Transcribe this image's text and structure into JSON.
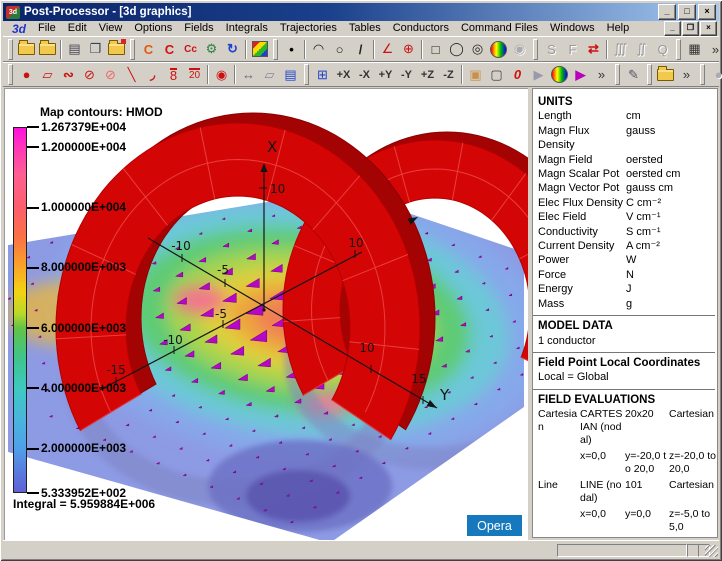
{
  "window": {
    "title": "Post-Processor - [3d graphics]",
    "app_icon": "3d",
    "controls": {
      "minimize": "_",
      "maximize": "□",
      "close": "×"
    },
    "mdi_controls": {
      "minimize": "_",
      "restore": "❐",
      "close": "×"
    }
  },
  "menu": {
    "items": [
      {
        "label": "3d",
        "accent": true
      },
      {
        "label": "File"
      },
      {
        "label": "Edit"
      },
      {
        "label": "View"
      },
      {
        "label": "Options"
      },
      {
        "label": "Fields"
      },
      {
        "label": "Integrals"
      },
      {
        "label": "Trajectories"
      },
      {
        "label": "Tables"
      },
      {
        "label": "Conductors"
      },
      {
        "label": "Command Files"
      },
      {
        "label": "Windows"
      },
      {
        "label": "Help"
      }
    ]
  },
  "toolbar1": {
    "items": [
      {
        "t": "g"
      },
      {
        "t": "b",
        "n": "open-results-file",
        "cls": "ic-folder"
      },
      {
        "t": "b",
        "n": "open-file",
        "cls": "ic-folder"
      },
      {
        "t": "s"
      },
      {
        "t": "b",
        "n": "print",
        "gl": "▤",
        "c": "#445"
      },
      {
        "t": "b",
        "n": "copy",
        "gl": "❐",
        "c": "#345"
      },
      {
        "t": "b",
        "n": "save-picture",
        "cls": "ic-folder red"
      },
      {
        "t": "g"
      },
      {
        "t": "b",
        "n": "define-conductors",
        "gl": "C",
        "c": "#e05a10",
        "b": 1
      },
      {
        "t": "b",
        "n": "modify-conductors",
        "gl": "C",
        "c": "#d01010",
        "b": 1
      },
      {
        "t": "b",
        "n": "conductor-coordinates",
        "gl": "Cc",
        "c": "#d01010",
        "b": 1,
        "sm": 1
      },
      {
        "t": "b",
        "n": "conductor-database",
        "gl": "⚙",
        "c": "#2a8040"
      },
      {
        "t": "b",
        "n": "refresh-view",
        "gl": "↻",
        "c": "#2040d0",
        "b": 1
      },
      {
        "t": "s"
      },
      {
        "t": "b",
        "n": "contour-map",
        "cls": "ic-contour"
      },
      {
        "t": "g"
      },
      {
        "t": "b",
        "n": "point-field",
        "gl": "•",
        "c": "#000",
        "b": 1
      },
      {
        "t": "s"
      },
      {
        "t": "b",
        "n": "arc-field",
        "gl": "◠",
        "c": "#222"
      },
      {
        "t": "b",
        "n": "circle-field",
        "gl": "○",
        "c": "#222"
      },
      {
        "t": "b",
        "n": "line-field",
        "gl": "/",
        "c": "#222",
        "b": 1
      },
      {
        "t": "s"
      },
      {
        "t": "b",
        "n": "angle-marker",
        "gl": "∠",
        "c": "#c11"
      },
      {
        "t": "b",
        "n": "rotation-marker",
        "gl": "⊕",
        "c": "#c11"
      },
      {
        "t": "s"
      },
      {
        "t": "b",
        "n": "patch-square",
        "gl": "□",
        "c": "#222"
      },
      {
        "t": "b",
        "n": "patch-ellipse",
        "gl": "◯",
        "c": "#222"
      },
      {
        "t": "b",
        "n": "patch-annulus",
        "gl": "◎",
        "c": "#222"
      },
      {
        "t": "b",
        "n": "sphere-map",
        "cls": "ic-rainbow"
      },
      {
        "t": "b",
        "n": "sphere-map-disabled",
        "gl": "◉",
        "c": "#aaa",
        "dis": 1
      },
      {
        "t": "g"
      },
      {
        "t": "b",
        "n": "spline-curve",
        "gl": "S",
        "c": "#999",
        "dis": 1
      },
      {
        "t": "b",
        "n": "force-calculation",
        "gl": "F",
        "c": "#999",
        "dis": 1
      },
      {
        "t": "b",
        "n": "vector-display",
        "gl": "⇄",
        "c": "#c11",
        "b": 1
      },
      {
        "t": "s"
      },
      {
        "t": "b",
        "n": "volume-integral",
        "gl": "∭",
        "c": "#999",
        "dis": 1
      },
      {
        "t": "b",
        "n": "surface-integral",
        "gl": "∬",
        "c": "#999",
        "dis": 1
      },
      {
        "t": "b",
        "n": "charge-calculation",
        "gl": "Q",
        "c": "#999",
        "dis": 1
      },
      {
        "t": "g"
      },
      {
        "t": "b",
        "n": "calculator",
        "gl": "▦",
        "c": "#333"
      },
      {
        "t": "m",
        "n": "toolbar1-overflow",
        "gl": "»"
      }
    ]
  },
  "toolbar2": {
    "items": [
      {
        "t": "g"
      },
      {
        "t": "b",
        "n": "draw-ellipse",
        "gl": "●",
        "c": "#c11"
      },
      {
        "t": "b",
        "n": "draw-polygon",
        "gl": "▱",
        "c": "#c11"
      },
      {
        "t": "b",
        "n": "draw-blob",
        "gl": "∾",
        "c": "#c11",
        "b": 1
      },
      {
        "t": "b",
        "n": "draw-patch",
        "gl": "⊘",
        "c": "#c11"
      },
      {
        "t": "b",
        "n": "draw-patch-outline",
        "gl": "⊘",
        "c": "#e66"
      },
      {
        "t": "b",
        "n": "draw-line",
        "gl": "╲",
        "c": "#c11"
      },
      {
        "t": "b",
        "n": "draw-arc",
        "gl": "◞",
        "c": "#c11",
        "b": 1
      },
      {
        "t": "b",
        "n": "grid-8",
        "gl": "8",
        "c": "#c11",
        "ov": 1
      },
      {
        "t": "b",
        "n": "grid-20",
        "gl": "20",
        "c": "#c11",
        "ov": 1,
        "sm": 1
      },
      {
        "t": "s"
      },
      {
        "t": "b",
        "n": "pick-tool",
        "gl": "◉",
        "c": "#c11"
      },
      {
        "t": "s"
      },
      {
        "t": "b",
        "n": "distance-tool",
        "gl": "↔",
        "c": "#667"
      },
      {
        "t": "b",
        "n": "eraser-tool",
        "gl": "▱",
        "c": "#889"
      },
      {
        "t": "b",
        "n": "list-file",
        "gl": "▤",
        "c": "#24c"
      },
      {
        "t": "g"
      },
      {
        "t": "b",
        "n": "axes-settings",
        "gl": "⊞",
        "c": "#24c"
      },
      {
        "t": "b",
        "n": "view-plus-x",
        "gl": "+X",
        "txt": 1
      },
      {
        "t": "b",
        "n": "view-minus-x",
        "gl": "-X",
        "txt": 1
      },
      {
        "t": "b",
        "n": "view-plus-y",
        "gl": "+Y",
        "txt": 1
      },
      {
        "t": "b",
        "n": "view-minus-y",
        "gl": "-Y",
        "txt": 1
      },
      {
        "t": "b",
        "n": "view-plus-z",
        "gl": "+Z",
        "txt": 1
      },
      {
        "t": "b",
        "n": "view-minus-z",
        "gl": "-Z",
        "txt": 1
      },
      {
        "t": "s"
      },
      {
        "t": "b",
        "n": "solid-view",
        "gl": "▣",
        "c": "#c89048"
      },
      {
        "t": "b",
        "n": "wireframe-view",
        "gl": "▢",
        "c": "#444"
      },
      {
        "t": "b",
        "n": "reset-view",
        "gl": "0",
        "c": "#c11",
        "b": 1,
        "it": 1
      },
      {
        "t": "b",
        "n": "play-animation",
        "gl": "▶",
        "c": "#99a"
      },
      {
        "t": "b",
        "n": "colour-map",
        "cls": "ic-rainbow"
      },
      {
        "t": "b",
        "n": "play-sequence",
        "gl": "▶",
        "c": "#b0b",
        "b": 1
      },
      {
        "t": "m",
        "n": "toolbar2-overflow-1",
        "gl": "»"
      },
      {
        "t": "g"
      },
      {
        "t": "b",
        "n": "annotate-pen",
        "gl": "✎",
        "c": "#556"
      },
      {
        "t": "g"
      },
      {
        "t": "b",
        "n": "open-command-file",
        "cls": "ic-folder"
      },
      {
        "t": "m",
        "n": "toolbar2-overflow-2",
        "gl": "»"
      },
      {
        "t": "g"
      },
      {
        "t": "b",
        "n": "record-macro",
        "gl": "●",
        "c": "#aab",
        "dis": 1
      }
    ]
  },
  "scale": {
    "title": "Map contours: HMOD",
    "max": {
      "label": "1.267379E+004",
      "value": 12673.79
    },
    "ticks": [
      {
        "label": "1.200000E+004",
        "value": 12000
      },
      {
        "label": "1.000000E+004",
        "value": 10000
      },
      {
        "label": "8.000000E+003",
        "value": 8000
      },
      {
        "label": "6.000000E+003",
        "value": 6000
      },
      {
        "label": "4.000000E+003",
        "value": 4000
      },
      {
        "label": "2.000000E+003",
        "value": 2000
      }
    ],
    "min": {
      "label": "5.333952E+002",
      "value": 533.3952
    },
    "integral": "Integral = 5.959884E+006"
  },
  "axes": {
    "x": {
      "label": "X",
      "tick_labels": [
        "10"
      ]
    },
    "y": {
      "label": "Y",
      "tick_labels": [
        "-10",
        "-5",
        "10",
        "15"
      ]
    },
    "z": {
      "tick_labels": [
        "-15",
        "-10",
        "-5",
        "10"
      ]
    }
  },
  "panel": {
    "units": {
      "heading": "UNITS",
      "rows": [
        [
          "Length",
          "cm"
        ],
        [
          "Magn Flux Density",
          "gauss"
        ],
        [
          "Magn Field",
          "oersted"
        ],
        [
          "Magn Scalar Pot",
          "oersted cm"
        ],
        [
          "Magn Vector Pot",
          "gauss cm"
        ],
        [
          "Elec Flux Density",
          "C cm⁻²"
        ],
        [
          "Elec Field",
          "V cm⁻¹"
        ],
        [
          "Conductivity",
          "S cm⁻¹"
        ],
        [
          "Current Density",
          "A cm⁻²"
        ],
        [
          "Power",
          "W"
        ],
        [
          "Force",
          "N"
        ],
        [
          "Energy",
          "J"
        ],
        [
          "Mass",
          "g"
        ]
      ]
    },
    "model_data": {
      "heading": "MODEL DATA",
      "text": "1 conductor"
    },
    "field_point": {
      "heading": "Field Point Local Coordinates",
      "text": "Local = Global"
    },
    "field_evaluations": {
      "heading": "FIELD EVALUATIONS",
      "rows": [
        {
          "cells": [
            "Cartesian",
            "CARTESIAN (nodal)",
            "20x20",
            "Cartesian"
          ]
        },
        {
          "cells": [
            "",
            "x=0,0",
            "y=-20,0 to 20,0",
            "z=-20,0 to 20,0"
          ]
        },
        {
          "cells": [
            "Line",
            "LINE (nodal)",
            "101",
            "Cartesian"
          ]
        },
        {
          "cells": [
            "",
            "x=0,0",
            "y=0,0",
            "z=-5,0 to 5,0"
          ]
        }
      ]
    }
  },
  "badge": {
    "label": "Opera"
  },
  "colors": {
    "titlebar_start": "#0a246a",
    "titlebar_end": "#a6caf0",
    "chrome": "#d4d0c8",
    "arch_red": "#d40505",
    "arrow_magenta": "#b607c6",
    "badge_blue": "#1779bd",
    "menu_accent": "#2233cc"
  }
}
